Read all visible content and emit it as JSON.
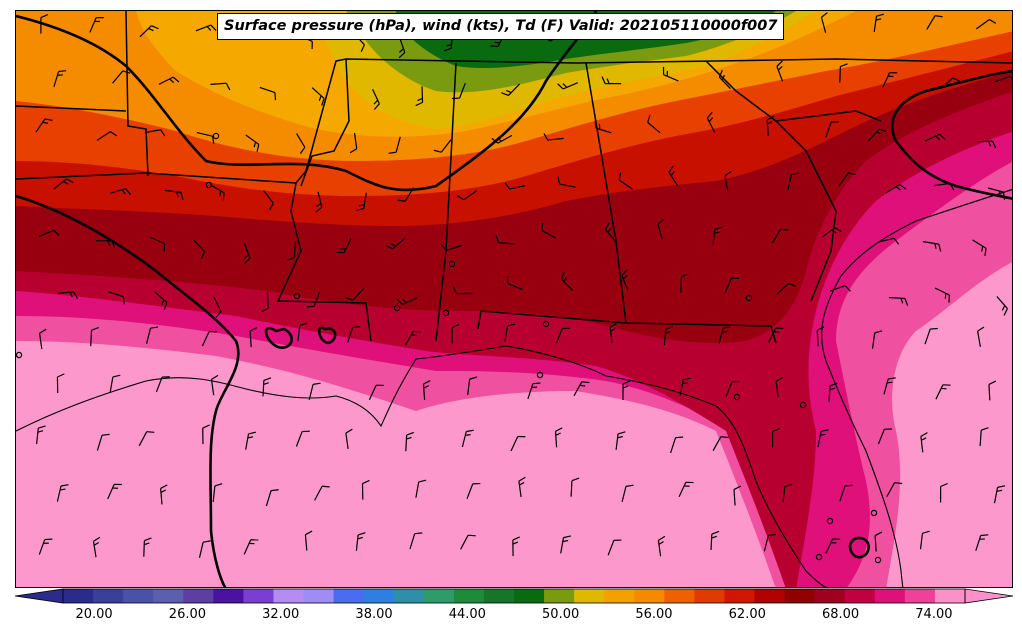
{
  "title": "Surface pressure (hPa), wind (kts), Td (F) Valid: 202105110000f007",
  "colorbar": {
    "min": 18,
    "max": 76,
    "step": 2,
    "ticks": [
      "20.00",
      "26.00",
      "32.00",
      "38.00",
      "44.00",
      "50.00",
      "56.00",
      "62.00",
      "68.00",
      "74.00"
    ],
    "tick_values": [
      20,
      26,
      32,
      38,
      44,
      50,
      56,
      62,
      68,
      74
    ],
    "colors": [
      "#2b2b8c",
      "#3a3f9a",
      "#4a52a8",
      "#5b5fae",
      "#5c3fa0",
      "#4a12a0",
      "#7a3ed0",
      "#b48cf2",
      "#9f8cf5",
      "#4a6cf0",
      "#2f7fe0",
      "#2f8fa8",
      "#2f9a6a",
      "#1f8a3a",
      "#17752a",
      "#0a6a10",
      "#7a9a10",
      "#e0b800",
      "#f5a000",
      "#f58a00",
      "#f06000",
      "#e03a00",
      "#d01500",
      "#b00000",
      "#900000",
      "#a00020",
      "#c00040",
      "#e0107a",
      "#f0409a",
      "#fc90c8"
    ]
  },
  "map_colors": {
    "gulf": "#fc98cb",
    "pink_mid": "#f050a0",
    "magenta": "#e0107a",
    "crimson": "#b80030",
    "dark_red": "#980010",
    "red": "#c81000",
    "orange_red": "#e84000",
    "orange": "#f58c00",
    "amber": "#f5a800",
    "yellow": "#e0b800",
    "olive": "#7a9a10",
    "green": "#0a6a10"
  },
  "icons": {
    "wind_barb": "wind-barb-icon",
    "station": "station-circle-icon"
  }
}
